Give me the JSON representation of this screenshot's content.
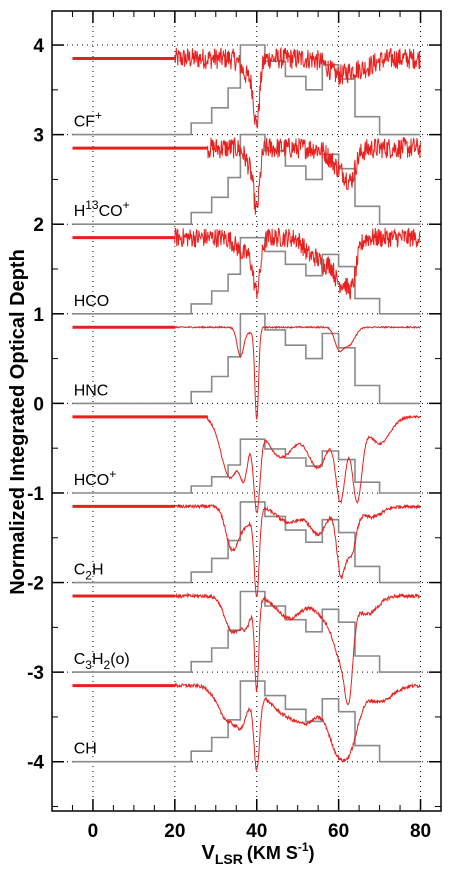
{
  "chart_data": {
    "type": "line",
    "title": "",
    "xlabel": "V",
    "xlabel_sub": "LSR",
    "xlabel_unit": "(KM S",
    "xlabel_unit_exp": "-1",
    "xlabel_unit_close": ")",
    "ylabel": "Normalized Integrated Optical Depth",
    "xlim": [
      -10,
      85
    ],
    "ylim": [
      -4.55,
      4.38
    ],
    "x_ticks": [
      0,
      20,
      40,
      60,
      80
    ],
    "y_ticks": [
      4,
      3,
      2,
      1,
      0,
      -1,
      -2,
      -3,
      -4
    ],
    "grid": "dotted",
    "colors": {
      "spectrum": "#e8201e",
      "step": "#8a8a8a",
      "axis": "#000000"
    },
    "step_profile": {
      "x": [
        -5,
        24,
        24,
        29,
        29,
        33,
        33,
        36,
        36,
        42,
        42,
        47,
        47,
        52,
        52,
        56,
        56,
        60,
        60,
        64,
        64,
        70,
        70,
        80
      ],
      "y": [
        0,
        0,
        0.13,
        0.13,
        0.3,
        0.3,
        0.52,
        0.52,
        1.0,
        1.0,
        0.82,
        0.82,
        0.65,
        0.65,
        0.5,
        0.5,
        0.78,
        0.78,
        0.62,
        0.62,
        0.2,
        0.2,
        0,
        0
      ]
    },
    "series": [
      {
        "name": "CF+",
        "label_parts": [
          {
            "t": "CF",
            "s": ""
          },
          {
            "t": "+",
            "s": "sup"
          }
        ],
        "baseline": 3,
        "start_x": 20,
        "step_scale": 1.0,
        "noise": 0.12,
        "absorptions": [
          {
            "center": 40,
            "width": 0.7,
            "depth": 0.65
          },
          {
            "center": 38,
            "width": 1.5,
            "depth": 0.2
          },
          {
            "center": 60,
            "width": 2.5,
            "depth": 0.18
          },
          {
            "center": 66,
            "width": 2.5,
            "depth": 0.1
          }
        ]
      },
      {
        "name": "H13CO+",
        "label_parts": [
          {
            "t": "H",
            "s": ""
          },
          {
            "t": "13",
            "s": "sup"
          },
          {
            "t": "CO",
            "s": ""
          },
          {
            "t": "+",
            "s": "sup"
          }
        ],
        "baseline": 2,
        "start_x": 28,
        "step_scale": 1.0,
        "noise": 0.12,
        "absorptions": [
          {
            "center": 40,
            "width": 0.7,
            "depth": 0.6
          },
          {
            "center": 38.5,
            "width": 1.2,
            "depth": 0.2
          },
          {
            "center": 61,
            "width": 2.5,
            "depth": 0.25
          },
          {
            "center": 63,
            "width": 1.0,
            "depth": 0.18
          }
        ]
      },
      {
        "name": "HCO",
        "label_parts": [
          {
            "t": "HCO",
            "s": ""
          }
        ],
        "baseline": 1,
        "start_x": 20,
        "step_scale": 0.85,
        "noise": 0.11,
        "absorptions": [
          {
            "center": 40,
            "width": 0.9,
            "depth": 0.55
          },
          {
            "center": 37,
            "width": 1.8,
            "depth": 0.18
          },
          {
            "center": 60,
            "width": 1.3,
            "depth": 0.45
          },
          {
            "center": 63,
            "width": 1.3,
            "depth": 0.55
          },
          {
            "center": 56.5,
            "width": 1.5,
            "depth": 0.28
          },
          {
            "center": 53,
            "width": 1.5,
            "depth": 0.18
          }
        ]
      },
      {
        "name": "HNC",
        "label_parts": [
          {
            "t": "HNC",
            "s": ""
          }
        ],
        "baseline": 0,
        "start_x": 20,
        "step_scale": 1.0,
        "noise": 0.008,
        "absorptions": [
          {
            "center": 36,
            "width": 0.8,
            "depth": 0.32
          },
          {
            "center": 40,
            "width": 0.45,
            "depth": 1.0
          },
          {
            "center": 38.5,
            "width": 1.2,
            "depth": 0.06
          },
          {
            "center": 60,
            "width": 1.0,
            "depth": 0.22
          },
          {
            "center": 62.5,
            "width": 1.4,
            "depth": 0.2
          }
        ]
      },
      {
        "name": "HCO+",
        "label_parts": [
          {
            "t": "HCO",
            "s": ""
          },
          {
            "t": "+",
            "s": "sup"
          }
        ],
        "baseline": -1,
        "start_x": 28,
        "step_scale": 0.6,
        "noise": 0.012,
        "absorptions": [
          {
            "center": 33.5,
            "width": 2.2,
            "depth": 0.68
          },
          {
            "center": 40,
            "width": 0.8,
            "depth": 0.95
          },
          {
            "center": 37,
            "width": 1.0,
            "depth": 0.5
          },
          {
            "center": 46,
            "width": 3.5,
            "depth": 0.45
          },
          {
            "center": 55,
            "width": 2.5,
            "depth": 0.55
          },
          {
            "center": 60.5,
            "width": 1.2,
            "depth": 0.9
          },
          {
            "center": 64.5,
            "width": 1.2,
            "depth": 0.92
          },
          {
            "center": 70,
            "width": 2.5,
            "depth": 0.3
          }
        ]
      },
      {
        "name": "C2H",
        "label_parts": [
          {
            "t": "C",
            "s": ""
          },
          {
            "t": "2",
            "s": "sub"
          },
          {
            "t": "H",
            "s": ""
          }
        ],
        "baseline": -2,
        "start_x": 20,
        "step_scale": 0.9,
        "noise": 0.02,
        "absorptions": [
          {
            "center": 34,
            "width": 1.5,
            "depth": 0.48
          },
          {
            "center": 40,
            "width": 0.6,
            "depth": 0.96
          },
          {
            "center": 37.5,
            "width": 1.5,
            "depth": 0.2
          },
          {
            "center": 48,
            "width": 3,
            "depth": 0.18
          },
          {
            "center": 55,
            "width": 2,
            "depth": 0.3
          },
          {
            "center": 60.5,
            "width": 1.0,
            "depth": 0.72
          },
          {
            "center": 63,
            "width": 1.2,
            "depth": 0.52
          },
          {
            "center": 68,
            "width": 2.5,
            "depth": 0.12
          }
        ]
      },
      {
        "name": "C3H2(o)",
        "label_parts": [
          {
            "t": "C",
            "s": ""
          },
          {
            "t": "3",
            "s": "sub"
          },
          {
            "t": "H",
            "s": ""
          },
          {
            "t": "2",
            "s": "sub"
          },
          {
            "t": "(o)",
            "s": ""
          }
        ],
        "baseline": -3,
        "start_x": 20,
        "step_scale": 0.9,
        "noise": 0.02,
        "absorptions": [
          {
            "center": 34,
            "width": 1.8,
            "depth": 0.4
          },
          {
            "center": 40,
            "width": 0.5,
            "depth": 1.0
          },
          {
            "center": 37.5,
            "width": 1.3,
            "depth": 0.3
          },
          {
            "center": 48,
            "width": 3,
            "depth": 0.25
          },
          {
            "center": 58,
            "width": 3,
            "depth": 0.3
          },
          {
            "center": 62.5,
            "width": 1.0,
            "depth": 0.88
          },
          {
            "center": 60.5,
            "width": 1.5,
            "depth": 0.45
          },
          {
            "center": 67,
            "width": 2.5,
            "depth": 0.2
          }
        ]
      },
      {
        "name": "CH",
        "label_parts": [
          {
            "t": "CH",
            "s": ""
          }
        ],
        "baseline": -4,
        "start_x": 20,
        "step_scale": 0.9,
        "noise": 0.02,
        "absorptions": [
          {
            "center": 33,
            "width": 2.5,
            "depth": 0.38
          },
          {
            "center": 40,
            "width": 0.7,
            "depth": 0.85
          },
          {
            "center": 36.5,
            "width": 1.5,
            "depth": 0.3
          },
          {
            "center": 47,
            "width": 4,
            "depth": 0.3
          },
          {
            "center": 53,
            "width": 3,
            "depth": 0.3
          },
          {
            "center": 59.5,
            "width": 2.2,
            "depth": 0.62
          },
          {
            "center": 63,
            "width": 2.0,
            "depth": 0.55
          },
          {
            "center": 70,
            "width": 3,
            "depth": 0.18
          }
        ]
      }
    ]
  }
}
